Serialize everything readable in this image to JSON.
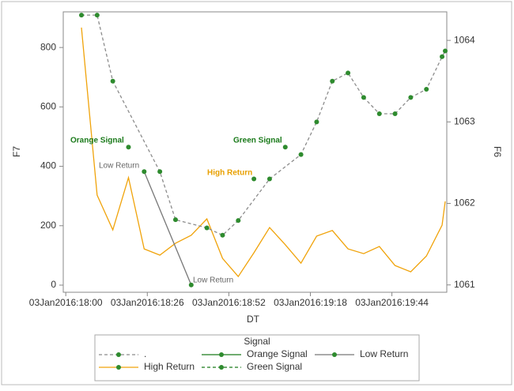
{
  "chart_data": {
    "type": "line",
    "xlabel": "DT",
    "ylabel": "F7",
    "y2label": "F6",
    "xlim": [
      -0.8,
      121.5
    ],
    "xticks": [
      {
        "value": 0,
        "label": "03Jan2016:18:00"
      },
      {
        "value": 26,
        "label": "03Jan2016:18:26"
      },
      {
        "value": 52,
        "label": "03Jan2016:18:52"
      },
      {
        "value": 78,
        "label": "03Jan2016:19:18"
      },
      {
        "value": 104,
        "label": "03Jan2016:19:44"
      }
    ],
    "ylim": [
      -24,
      920
    ],
    "yticks": [
      0,
      200,
      400,
      600,
      800
    ],
    "y2lim": [
      1060.91,
      1064.35
    ],
    "y2ticks": [
      1061,
      1062,
      1063,
      1064
    ],
    "marker_color": "#2e8b2e",
    "f7": {
      "color": "#f0a30a",
      "x": [
        5,
        10,
        15,
        20,
        25,
        30,
        35,
        40,
        45,
        50,
        55,
        60,
        65,
        70,
        75,
        80,
        85,
        90,
        95,
        100,
        105,
        110,
        115,
        120,
        121
      ],
      "values": [
        867,
        303,
        186,
        362,
        122,
        101,
        141,
        168,
        223,
        90,
        29,
        109,
        194,
        136,
        74,
        165,
        184,
        122,
        106,
        130,
        66,
        45,
        98,
        202,
        282
      ]
    },
    "legend_title": "Signal",
    "series": [
      {
        "name": ".",
        "color": "#8c8c8c",
        "dash": true,
        "axis": "y2",
        "x": [
          5,
          10,
          15,
          30,
          35,
          45,
          50,
          55,
          65,
          75,
          80,
          85,
          90,
          95,
          100,
          105,
          110,
          115,
          120,
          121
        ],
        "values": [
          1064.31,
          1064.31,
          1063.5,
          1062.39,
          1061.8,
          1061.7,
          1061.61,
          1061.79,
          1062.3,
          1062.6,
          1063.0,
          1063.5,
          1063.6,
          1063.3,
          1063.1,
          1063.1,
          1063.3,
          1063.4,
          1063.8,
          1063.87
        ]
      },
      {
        "name": "Orange Signal",
        "color": "#1a7a1a",
        "dash": false,
        "axis": "y2",
        "x": [
          20
        ],
        "values": [
          1062.69
        ]
      },
      {
        "name": "Low Return",
        "color": "#777777",
        "dash": false,
        "axis": "y2",
        "x": [
          25,
          40
        ],
        "values": [
          1062.39,
          1061.0
        ]
      },
      {
        "name": "High Return",
        "color": "#f0a30a",
        "dash": false,
        "axis": "y2",
        "x": [
          60
        ],
        "values": [
          1062.3
        ]
      },
      {
        "name": "Green Signal",
        "color": "#1a7a1a",
        "dash": true,
        "axis": "y2",
        "x": [
          70
        ],
        "values": [
          1062.69
        ]
      }
    ],
    "annotations": [
      {
        "text": "Orange Signal",
        "color": "#1a7a1a"
      },
      {
        "text": "Low Return",
        "color": "#666666"
      },
      {
        "text": "High Return",
        "color": "#e8a000"
      },
      {
        "text": "Green Signal",
        "color": "#1a7a1a"
      },
      {
        "text": "Low Return",
        "color": "#666666"
      }
    ]
  }
}
